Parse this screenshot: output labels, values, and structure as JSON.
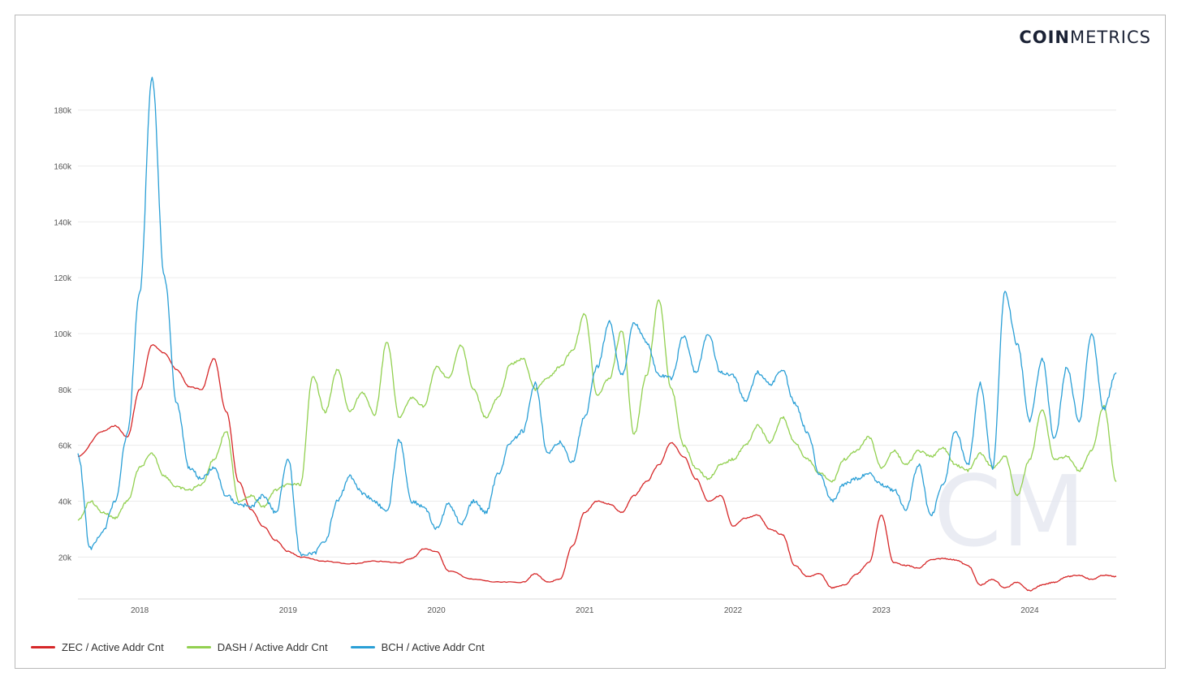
{
  "brand": {
    "bold": "COIN",
    "light": "METRICS",
    "watermark": "CM"
  },
  "chart_data": {
    "type": "line",
    "title": "",
    "xlabel": "",
    "ylabel": "",
    "x_ticks": [
      "2018",
      "2019",
      "2020",
      "2021",
      "2022",
      "2023",
      "2024"
    ],
    "y_ticks": [
      "20k",
      "40k",
      "60k",
      "80k",
      "100k",
      "120k",
      "140k",
      "160k",
      "180k"
    ],
    "xlim": [
      "2017-08",
      "2024-08"
    ],
    "ylim": [
      5000,
      195000
    ],
    "grid": true,
    "legend_position": "bottom-left",
    "series": [
      {
        "name": "ZEC / Active Addr Cnt",
        "color": "#d62728",
        "points": [
          [
            "2017-08",
            56000
          ],
          [
            "2017-10",
            65000
          ],
          [
            "2017-11",
            67000
          ],
          [
            "2017-12",
            63000
          ],
          [
            "2018-01",
            80000
          ],
          [
            "2018-02",
            96000
          ],
          [
            "2018-03",
            93000
          ],
          [
            "2018-04",
            87000
          ],
          [
            "2018-05",
            81000
          ],
          [
            "2018-06",
            80000
          ],
          [
            "2018-07",
            91000
          ],
          [
            "2018-08",
            72000
          ],
          [
            "2018-09",
            47000
          ],
          [
            "2018-10",
            37000
          ],
          [
            "2018-11",
            31000
          ],
          [
            "2018-12",
            26000
          ],
          [
            "2019-01",
            22000
          ],
          [
            "2019-02",
            20000
          ],
          [
            "2019-04",
            18500
          ],
          [
            "2019-06",
            17500
          ],
          [
            "2019-08",
            18500
          ],
          [
            "2019-10",
            18000
          ],
          [
            "2019-11",
            19500
          ],
          [
            "2019-12",
            23000
          ],
          [
            "2020-01",
            22000
          ],
          [
            "2020-02",
            15000
          ],
          [
            "2020-04",
            12000
          ],
          [
            "2020-06",
            11000
          ],
          [
            "2020-08",
            11000
          ],
          [
            "2020-09",
            14000
          ],
          [
            "2020-10",
            11000
          ],
          [
            "2020-11",
            12000
          ],
          [
            "2020-12",
            24000
          ],
          [
            "2021-01",
            36000
          ],
          [
            "2021-02",
            40000
          ],
          [
            "2021-03",
            39000
          ],
          [
            "2021-04",
            36000
          ],
          [
            "2021-05",
            42000
          ],
          [
            "2021-06",
            47000
          ],
          [
            "2021-07",
            53000
          ],
          [
            "2021-08",
            61000
          ],
          [
            "2021-09",
            56000
          ],
          [
            "2021-10",
            48000
          ],
          [
            "2021-11",
            40000
          ],
          [
            "2021-12",
            42000
          ],
          [
            "2022-01",
            31000
          ],
          [
            "2022-02",
            34000
          ],
          [
            "2022-03",
            35000
          ],
          [
            "2022-04",
            30000
          ],
          [
            "2022-05",
            28000
          ],
          [
            "2022-06",
            17000
          ],
          [
            "2022-07",
            13000
          ],
          [
            "2022-08",
            14000
          ],
          [
            "2022-09",
            9000
          ],
          [
            "2022-10",
            10000
          ],
          [
            "2022-11",
            14000
          ],
          [
            "2022-12",
            18000
          ],
          [
            "2023-01",
            35000
          ],
          [
            "2023-02",
            18000
          ],
          [
            "2023-03",
            17000
          ],
          [
            "2023-04",
            16000
          ],
          [
            "2023-05",
            19000
          ],
          [
            "2023-06",
            19500
          ],
          [
            "2023-07",
            19000
          ],
          [
            "2023-08",
            17000
          ],
          [
            "2023-09",
            10000
          ],
          [
            "2023-10",
            12000
          ],
          [
            "2023-11",
            9000
          ],
          [
            "2023-12",
            11000
          ],
          [
            "2024-01",
            8000
          ],
          [
            "2024-02",
            10000
          ],
          [
            "2024-03",
            11000
          ],
          [
            "2024-04",
            13000
          ],
          [
            "2024-05",
            13500
          ],
          [
            "2024-06",
            12000
          ],
          [
            "2024-07",
            13500
          ],
          [
            "2024-08",
            13000
          ]
        ]
      },
      {
        "name": "DASH / Active Addr Cnt",
        "color": "#92d050",
        "points": [
          [
            "2017-08",
            33000
          ],
          [
            "2017-09",
            40000
          ],
          [
            "2017-10",
            36000
          ],
          [
            "2017-11",
            34000
          ],
          [
            "2017-12",
            40000
          ],
          [
            "2018-01",
            52000
          ],
          [
            "2018-02",
            57000
          ],
          [
            "2018-03",
            49000
          ],
          [
            "2018-04",
            45000
          ],
          [
            "2018-05",
            44000
          ],
          [
            "2018-06",
            46000
          ],
          [
            "2018-07",
            55000
          ],
          [
            "2018-08",
            65000
          ],
          [
            "2018-09",
            40000
          ],
          [
            "2018-10",
            42000
          ],
          [
            "2018-11",
            38000
          ],
          [
            "2018-12",
            44000
          ],
          [
            "2019-01",
            46000
          ],
          [
            "2019-02",
            46000
          ],
          [
            "2019-03",
            85000
          ],
          [
            "2019-04",
            72000
          ],
          [
            "2019-05",
            87000
          ],
          [
            "2019-06",
            72000
          ],
          [
            "2019-07",
            79000
          ],
          [
            "2019-08",
            71000
          ],
          [
            "2019-09",
            97000
          ],
          [
            "2019-10",
            70000
          ],
          [
            "2019-11",
            77000
          ],
          [
            "2019-12",
            74000
          ],
          [
            "2020-01",
            88000
          ],
          [
            "2020-02",
            84000
          ],
          [
            "2020-03",
            96000
          ],
          [
            "2020-04",
            80000
          ],
          [
            "2020-05",
            70000
          ],
          [
            "2020-06",
            77000
          ],
          [
            "2020-07",
            89000
          ],
          [
            "2020-08",
            91000
          ],
          [
            "2020-09",
            80000
          ],
          [
            "2020-10",
            84000
          ],
          [
            "2020-11",
            88000
          ],
          [
            "2020-12",
            94000
          ],
          [
            "2021-01",
            107000
          ],
          [
            "2021-02",
            78000
          ],
          [
            "2021-03",
            84000
          ],
          [
            "2021-04",
            101000
          ],
          [
            "2021-05",
            64000
          ],
          [
            "2021-06",
            85000
          ],
          [
            "2021-07",
            112000
          ],
          [
            "2021-08",
            80000
          ],
          [
            "2021-09",
            60000
          ],
          [
            "2021-10",
            52000
          ],
          [
            "2021-11",
            48000
          ],
          [
            "2021-12",
            53000
          ],
          [
            "2022-01",
            55000
          ],
          [
            "2022-02",
            60000
          ],
          [
            "2022-03",
            67000
          ],
          [
            "2022-04",
            61000
          ],
          [
            "2022-05",
            70000
          ],
          [
            "2022-06",
            61000
          ],
          [
            "2022-07",
            55000
          ],
          [
            "2022-08",
            50000
          ],
          [
            "2022-09",
            47000
          ],
          [
            "2022-10",
            55000
          ],
          [
            "2022-11",
            58000
          ],
          [
            "2022-12",
            63000
          ],
          [
            "2023-01",
            52000
          ],
          [
            "2023-02",
            58000
          ],
          [
            "2023-03",
            53000
          ],
          [
            "2023-04",
            58000
          ],
          [
            "2023-05",
            56000
          ],
          [
            "2023-06",
            59000
          ],
          [
            "2023-07",
            53000
          ],
          [
            "2023-08",
            51000
          ],
          [
            "2023-09",
            57000
          ],
          [
            "2023-10",
            52000
          ],
          [
            "2023-11",
            56000
          ],
          [
            "2023-12",
            42000
          ],
          [
            "2024-01",
            55000
          ],
          [
            "2024-02",
            73000
          ],
          [
            "2024-03",
            55000
          ],
          [
            "2024-04",
            56000
          ],
          [
            "2024-05",
            51000
          ],
          [
            "2024-06",
            58000
          ],
          [
            "2024-07",
            74000
          ],
          [
            "2024-08",
            47000
          ]
        ]
      },
      {
        "name": "BCH / Active Addr Cnt",
        "color": "#2a9fd6",
        "points": [
          [
            "2017-08",
            57000
          ],
          [
            "2017-09",
            23000
          ],
          [
            "2017-10",
            29000
          ],
          [
            "2017-11",
            40000
          ],
          [
            "2017-12",
            64000
          ],
          [
            "2018-01",
            115000
          ],
          [
            "2018-02",
            192000
          ],
          [
            "2018-03",
            120000
          ],
          [
            "2018-04",
            75000
          ],
          [
            "2018-05",
            52000
          ],
          [
            "2018-06",
            48000
          ],
          [
            "2018-07",
            52000
          ],
          [
            "2018-08",
            42000
          ],
          [
            "2018-09",
            39000
          ],
          [
            "2018-10",
            38000
          ],
          [
            "2018-11",
            42000
          ],
          [
            "2018-12",
            36000
          ],
          [
            "2019-01",
            55000
          ],
          [
            "2019-02",
            21000
          ],
          [
            "2019-03",
            21000
          ],
          [
            "2019-04",
            26000
          ],
          [
            "2019-05",
            40000
          ],
          [
            "2019-06",
            49000
          ],
          [
            "2019-07",
            43000
          ],
          [
            "2019-08",
            40000
          ],
          [
            "2019-09",
            36000
          ],
          [
            "2019-10",
            62000
          ],
          [
            "2019-11",
            40000
          ],
          [
            "2019-12",
            38000
          ],
          [
            "2020-01",
            30000
          ],
          [
            "2020-02",
            39000
          ],
          [
            "2020-03",
            32000
          ],
          [
            "2020-04",
            40000
          ],
          [
            "2020-05",
            36000
          ],
          [
            "2020-06",
            50000
          ],
          [
            "2020-07",
            61000
          ],
          [
            "2020-08",
            65000
          ],
          [
            "2020-09",
            82000
          ],
          [
            "2020-10",
            57000
          ],
          [
            "2020-11",
            61000
          ],
          [
            "2020-12",
            54000
          ],
          [
            "2021-01",
            70000
          ],
          [
            "2021-02",
            88000
          ],
          [
            "2021-03",
            104000
          ],
          [
            "2021-04",
            85000
          ],
          [
            "2021-05",
            104000
          ],
          [
            "2021-06",
            97000
          ],
          [
            "2021-07",
            85000
          ],
          [
            "2021-08",
            84000
          ],
          [
            "2021-09",
            99000
          ],
          [
            "2021-10",
            86000
          ],
          [
            "2021-11",
            100000
          ],
          [
            "2021-12",
            86000
          ],
          [
            "2022-01",
            85000
          ],
          [
            "2022-02",
            76000
          ],
          [
            "2022-03",
            86000
          ],
          [
            "2022-04",
            82000
          ],
          [
            "2022-05",
            87000
          ],
          [
            "2022-06",
            75000
          ],
          [
            "2022-07",
            65000
          ],
          [
            "2022-08",
            50000
          ],
          [
            "2022-09",
            40000
          ],
          [
            "2022-10",
            46000
          ],
          [
            "2022-11",
            48000
          ],
          [
            "2022-12",
            50000
          ],
          [
            "2023-01",
            46000
          ],
          [
            "2023-02",
            44000
          ],
          [
            "2023-03",
            37000
          ],
          [
            "2023-04",
            53000
          ],
          [
            "2023-05",
            35000
          ],
          [
            "2023-06",
            46000
          ],
          [
            "2023-07",
            65000
          ],
          [
            "2023-08",
            53000
          ],
          [
            "2023-09",
            82000
          ],
          [
            "2023-10",
            52000
          ],
          [
            "2023-11",
            115000
          ],
          [
            "2023-12",
            96000
          ],
          [
            "2024-01",
            69000
          ],
          [
            "2024-02",
            91000
          ],
          [
            "2024-03",
            62000
          ],
          [
            "2024-04",
            88000
          ],
          [
            "2024-05",
            69000
          ],
          [
            "2024-06",
            100000
          ],
          [
            "2024-07",
            73000
          ],
          [
            "2024-08",
            86000
          ]
        ]
      }
    ]
  }
}
